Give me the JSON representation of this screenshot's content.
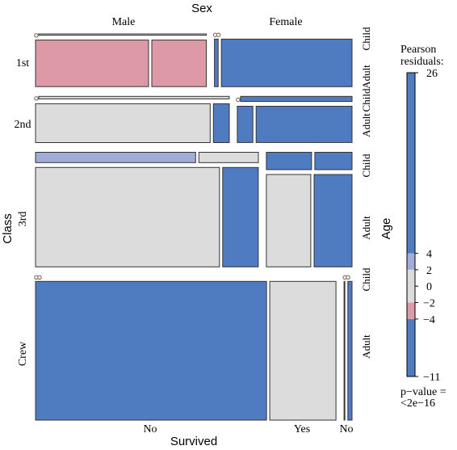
{
  "chart_data": {
    "type": "mosaic",
    "title": "",
    "variables": {
      "top": "Sex",
      "left": "Class",
      "right": "Age",
      "bottom": "Survived"
    },
    "levels": {
      "Sex": [
        "Male",
        "Female"
      ],
      "Class": [
        "1st",
        "2nd",
        "3rd",
        "Crew"
      ],
      "Age": [
        "Child",
        "Adult"
      ],
      "Survived": [
        "No",
        "Yes"
      ]
    },
    "bottom_labels": [
      "No",
      "Yes",
      "No"
    ],
    "cells": [
      {
        "class": "1st",
        "sex": "Male",
        "age": "Child",
        "survived": "No",
        "count": 0,
        "residual": -0.2
      },
      {
        "class": "1st",
        "sex": "Male",
        "age": "Child",
        "survived": "Yes",
        "count": 5,
        "residual": 0.0
      },
      {
        "class": "1st",
        "sex": "Male",
        "age": "Adult",
        "survived": "No",
        "count": 118,
        "residual": -2.5
      },
      {
        "class": "1st",
        "sex": "Male",
        "age": "Adult",
        "survived": "Yes",
        "count": 57,
        "residual": -3.5
      },
      {
        "class": "1st",
        "sex": "Female",
        "age": "Child",
        "survived": "No",
        "count": 0,
        "residual": -0.2
      },
      {
        "class": "1st",
        "sex": "Female",
        "age": "Child",
        "survived": "Yes",
        "count": 1,
        "residual": 5.0
      },
      {
        "class": "1st",
        "sex": "Female",
        "age": "Adult",
        "survived": "No",
        "count": 4,
        "residual": -4.5
      },
      {
        "class": "1st",
        "sex": "Female",
        "age": "Adult",
        "survived": "Yes",
        "count": 140,
        "residual": 26.0
      },
      {
        "class": "2nd",
        "sex": "Male",
        "age": "Child",
        "survived": "No",
        "count": 0,
        "residual": -0.2
      },
      {
        "class": "2nd",
        "sex": "Male",
        "age": "Child",
        "survived": "Yes",
        "count": 11,
        "residual": 1.0
      },
      {
        "class": "2nd",
        "sex": "Male",
        "age": "Adult",
        "survived": "No",
        "count": 154,
        "residual": 1.5
      },
      {
        "class": "2nd",
        "sex": "Male",
        "age": "Adult",
        "survived": "Yes",
        "count": 14,
        "residual": -4.5
      },
      {
        "class": "2nd",
        "sex": "Female",
        "age": "Child",
        "survived": "No",
        "count": 0,
        "residual": -0.2
      },
      {
        "class": "2nd",
        "sex": "Female",
        "age": "Child",
        "survived": "Yes",
        "count": 13,
        "residual": 5.5
      },
      {
        "class": "2nd",
        "sex": "Female",
        "age": "Adult",
        "survived": "No",
        "count": 13,
        "residual": -4.5
      },
      {
        "class": "2nd",
        "sex": "Female",
        "age": "Adult",
        "survived": "Yes",
        "count": 80,
        "residual": 12.0
      },
      {
        "class": "3rd",
        "sex": "Male",
        "age": "Child",
        "survived": "No",
        "count": 35,
        "residual": 2.5
      },
      {
        "class": "3rd",
        "sex": "Male",
        "age": "Child",
        "survived": "Yes",
        "count": 13,
        "residual": 0.5
      },
      {
        "class": "3rd",
        "sex": "Male",
        "age": "Adult",
        "survived": "No",
        "count": 387,
        "residual": 1.5
      },
      {
        "class": "3rd",
        "sex": "Male",
        "age": "Adult",
        "survived": "Yes",
        "count": 75,
        "residual": -8.0
      },
      {
        "class": "3rd",
        "sex": "Female",
        "age": "Child",
        "survived": "No",
        "count": 17,
        "residual": 4.5
      },
      {
        "class": "3rd",
        "sex": "Female",
        "age": "Child",
        "survived": "Yes",
        "count": 14,
        "residual": 5.0
      },
      {
        "class": "3rd",
        "sex": "Female",
        "age": "Adult",
        "survived": "No",
        "count": 89,
        "residual": 0.5
      },
      {
        "class": "3rd",
        "sex": "Female",
        "age": "Adult",
        "survived": "Yes",
        "count": 76,
        "residual": 9.0
      },
      {
        "class": "Crew",
        "sex": "Male",
        "age": "Child",
        "survived": "No",
        "count": 0,
        "residual": -0.5
      },
      {
        "class": "Crew",
        "sex": "Male",
        "age": "Child",
        "survived": "Yes",
        "count": 0,
        "residual": -0.5
      },
      {
        "class": "Crew",
        "sex": "Male",
        "age": "Adult",
        "survived": "No",
        "count": 670,
        "residual": 9.0
      },
      {
        "class": "Crew",
        "sex": "Male",
        "age": "Adult",
        "survived": "Yes",
        "count": 192,
        "residual": 0.5
      },
      {
        "class": "Crew",
        "sex": "Female",
        "age": "Child",
        "survived": "No",
        "count": 0,
        "residual": -0.2
      },
      {
        "class": "Crew",
        "sex": "Female",
        "age": "Child",
        "survived": "Yes",
        "count": 0,
        "residual": -0.2
      },
      {
        "class": "Crew",
        "sex": "Female",
        "age": "Adult",
        "survived": "No",
        "count": 3,
        "residual": -5.0
      },
      {
        "class": "Crew",
        "sex": "Female",
        "age": "Adult",
        "survived": "Yes",
        "count": 20,
        "residual": 5.0
      }
    ],
    "legend": {
      "title_line1": "Pearson",
      "title_line2": "residuals:",
      "range": [
        -11,
        26
      ],
      "ticks": [
        26,
        4,
        2,
        0,
        -2,
        -4,
        -11
      ],
      "tick_labels": [
        "26",
        "4",
        "2",
        "0",
        "−2",
        "−4",
        "−11"
      ],
      "bands": [
        {
          "from": 4,
          "to": 26,
          "color": "#4F7BC0"
        },
        {
          "from": 2,
          "to": 4,
          "color": "#A1ACD8"
        },
        {
          "from": -2,
          "to": 2,
          "color": "#DCDCDC"
        },
        {
          "from": -4,
          "to": -2,
          "color": "#DE99A6"
        },
        {
          "from": -11,
          "to": -4,
          "color": "#4F7BC0"
        }
      ],
      "pvalue_line1": "p−value =",
      "pvalue_line2": "<2e−16",
      "placement": "right"
    },
    "colors": {
      "strong": "#4F7BC0",
      "moderate_pos": "#A1ACD8",
      "neutral": "#DCDCDC",
      "moderate_neg": "#DE99A6",
      "border": "#333333"
    }
  }
}
